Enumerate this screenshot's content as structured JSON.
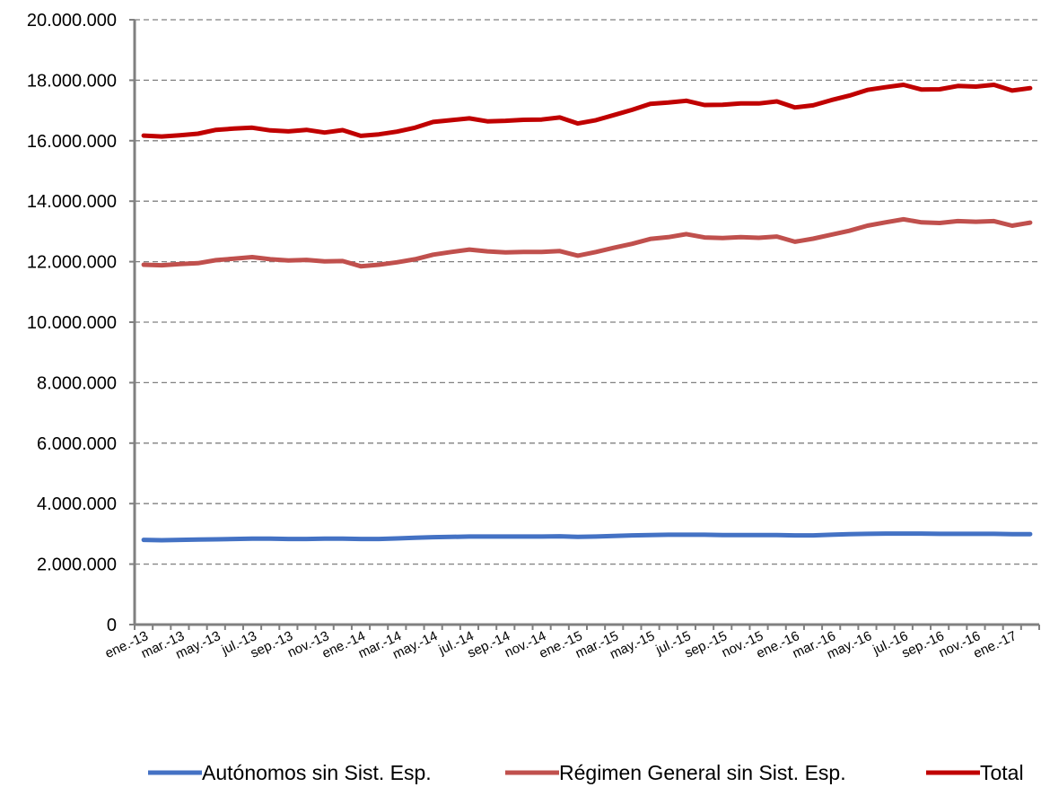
{
  "chart_data": {
    "type": "line",
    "x": [
      "ene.-13",
      "feb.-13",
      "mar.-13",
      "abr.-13",
      "may.-13",
      "jun.-13",
      "jul.-13",
      "ago.-13",
      "sep.-13",
      "oct.-13",
      "nov.-13",
      "dic.-13",
      "ene.-14",
      "feb.-14",
      "mar.-14",
      "abr.-14",
      "may.-14",
      "jun.-14",
      "jul.-14",
      "ago.-14",
      "sep.-14",
      "oct.-14",
      "nov.-14",
      "dic.-14",
      "ene.-15",
      "feb.-15",
      "mar.-15",
      "abr.-15",
      "may.-15",
      "jun.-15",
      "jul.-15",
      "ago.-15",
      "sep.-15",
      "oct.-15",
      "nov.-15",
      "dic.-15",
      "ene.-16",
      "feb.-16",
      "mar.-16",
      "abr.-16",
      "may.-16",
      "jun.-16",
      "jul.-16",
      "ago.-16",
      "sep.-16",
      "oct.-16",
      "nov.-16",
      "dic.-16",
      "ene.-17",
      "feb.-17"
    ],
    "xtick_labels": [
      "ene.-13",
      "mar.-13",
      "may.-13",
      "jul.-13",
      "sep.-13",
      "nov.-13",
      "ene.-14",
      "mar.-14",
      "may.-14",
      "jul.-14",
      "sep.-14",
      "nov.-14",
      "ene.-15",
      "mar.-15",
      "may.-15",
      "jul.-15",
      "sep.-15",
      "nov.-15",
      "ene.-16",
      "mar.-16",
      "may.-16",
      "jul.-16",
      "sep.-16",
      "nov.-16",
      "ene.-17"
    ],
    "yticks": [
      "0",
      "2.000.000",
      "4.000.000",
      "6.000.000",
      "8.000.000",
      "10.000.000",
      "12.000.000",
      "14.000.000",
      "16.000.000",
      "18.000.000",
      "20.000.000"
    ],
    "ylim": [
      0,
      20000000
    ],
    "grid": true,
    "legend_position": "bottom",
    "series": [
      {
        "name": "Autónomos sin Sist. Esp.",
        "color": "#4472C4",
        "values": [
          2800000,
          2790000,
          2800000,
          2810000,
          2820000,
          2830000,
          2840000,
          2840000,
          2830000,
          2830000,
          2840000,
          2840000,
          2830000,
          2830000,
          2850000,
          2870000,
          2890000,
          2900000,
          2910000,
          2910000,
          2910000,
          2910000,
          2910000,
          2920000,
          2900000,
          2910000,
          2930000,
          2950000,
          2960000,
          2970000,
          2970000,
          2970000,
          2960000,
          2960000,
          2960000,
          2960000,
          2950000,
          2950000,
          2970000,
          2990000,
          3000000,
          3010000,
          3010000,
          3010000,
          3000000,
          3000000,
          3000000,
          3000000,
          2990000,
          2990000
        ]
      },
      {
        "name": "Régimen General sin Sist. Esp.",
        "color": "#C0504D",
        "values": [
          11900000,
          11880000,
          11920000,
          11950000,
          12050000,
          12100000,
          12150000,
          12080000,
          12040000,
          12060000,
          12010000,
          12020000,
          11850000,
          11900000,
          11980000,
          12080000,
          12230000,
          12320000,
          12400000,
          12340000,
          12310000,
          12320000,
          12320000,
          12350000,
          12200000,
          12320000,
          12460000,
          12590000,
          12750000,
          12810000,
          12910000,
          12800000,
          12780000,
          12810000,
          12790000,
          12830000,
          12660000,
          12760000,
          12890000,
          13020000,
          13190000,
          13300000,
          13400000,
          13300000,
          13280000,
          13340000,
          13320000,
          13340000,
          13190000,
          13290000
        ]
      },
      {
        "name": "Total",
        "color": "#C00000",
        "values": [
          16170000,
          16140000,
          16180000,
          16230000,
          16360000,
          16400000,
          16430000,
          16340000,
          16310000,
          16360000,
          16270000,
          16350000,
          16160000,
          16210000,
          16300000,
          16430000,
          16620000,
          16680000,
          16740000,
          16640000,
          16660000,
          16690000,
          16700000,
          16770000,
          16570000,
          16680000,
          16850000,
          17020000,
          17220000,
          17260000,
          17320000,
          17180000,
          17190000,
          17230000,
          17230000,
          17300000,
          17100000,
          17170000,
          17340000,
          17490000,
          17680000,
          17770000,
          17850000,
          17690000,
          17700000,
          17810000,
          17790000,
          17850000,
          17660000,
          17740000
        ]
      }
    ]
  }
}
